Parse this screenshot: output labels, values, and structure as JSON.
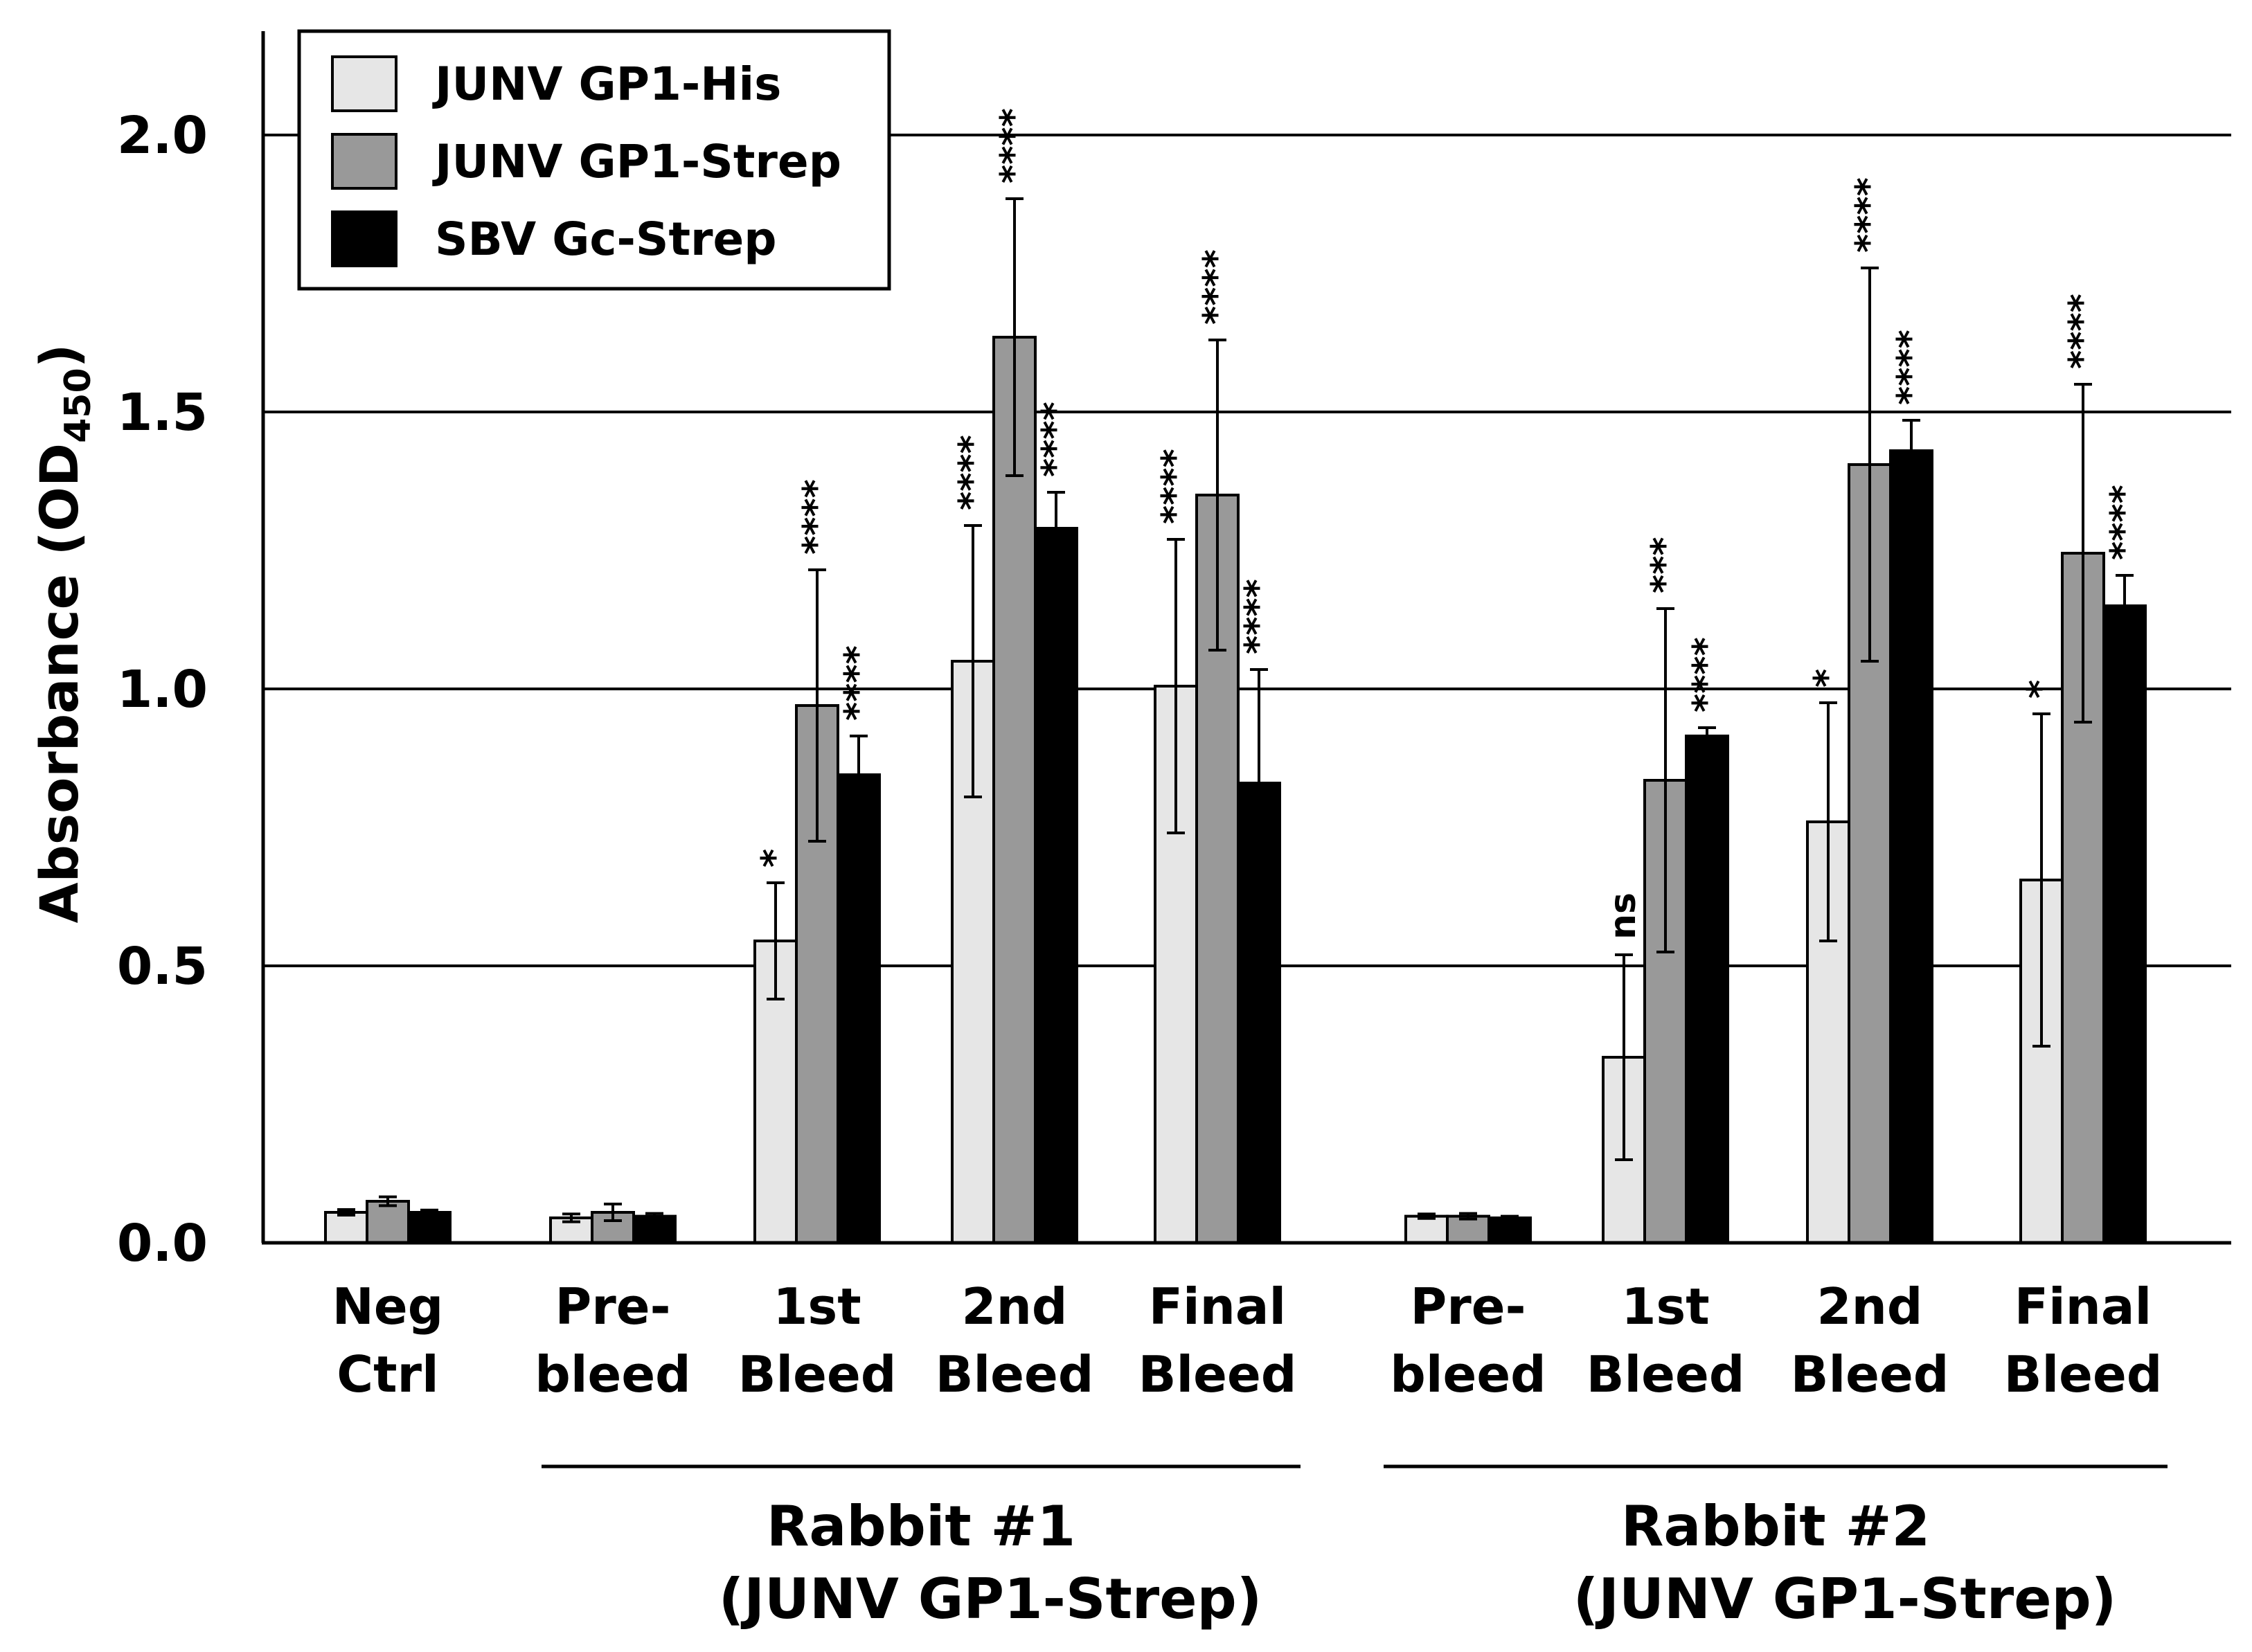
{
  "chart_data": {
    "type": "bar",
    "title": "",
    "xlabel": "",
    "ylabel": "Absorbance (OD",
    "ylabel_subscript": "450",
    "ylabel_suffix": ")",
    "ylim": [
      0,
      2.2
    ],
    "yticks": [
      "0.0",
      "0.5",
      "1.0",
      "1.5",
      "2.0"
    ],
    "ytick_values": [
      0,
      0.5,
      1.0,
      1.5,
      2.0
    ],
    "grid": true,
    "legend_position": "top-left",
    "categories": [
      [
        "Neg",
        "Ctrl"
      ],
      [
        "Pre-",
        "bleed"
      ],
      [
        "1st",
        "Bleed"
      ],
      [
        "2nd",
        "Bleed"
      ],
      [
        "Final",
        "Bleed"
      ],
      [
        "Pre-",
        "bleed"
      ],
      [
        "1st",
        "Bleed"
      ],
      [
        "2nd",
        "Bleed"
      ],
      [
        "Final",
        "Bleed"
      ]
    ],
    "groups": [
      {
        "lines": [
          "Rabbit #1",
          "(JUNV GP1-Strep)"
        ],
        "start": 1,
        "end": 4
      },
      {
        "lines": [
          "Rabbit #2",
          "(JUNV GP1-Strep)"
        ],
        "start": 5,
        "end": 8
      }
    ],
    "series": [
      {
        "name": "JUNV GP1-His",
        "color": "#e6e6e6",
        "values": [
          0.055,
          0.045,
          0.545,
          1.05,
          1.005,
          0.048,
          0.335,
          0.76,
          0.655
        ],
        "errors": [
          0.005,
          0.007,
          0.105,
          0.245,
          0.265,
          0.004,
          0.185,
          0.215,
          0.3
        ],
        "sig": [
          "",
          "",
          "*",
          "****",
          "****",
          "",
          "ns",
          "*",
          "*"
        ]
      },
      {
        "name": "JUNV GP1-Strep",
        "color": "#999999",
        "values": [
          0.075,
          0.055,
          0.97,
          1.635,
          1.35,
          0.048,
          0.835,
          1.405,
          1.245
        ],
        "errors": [
          0.008,
          0.015,
          0.245,
          0.25,
          0.28,
          0.005,
          0.31,
          0.355,
          0.305
        ],
        "sig": [
          "",
          "",
          "****",
          "****",
          "****",
          "",
          "***",
          "****",
          "****"
        ]
      },
      {
        "name": "SBV Gc-Strep",
        "color": "#000000",
        "values": [
          0.055,
          0.048,
          0.845,
          1.29,
          0.83,
          0.045,
          0.915,
          1.43,
          1.15
        ],
        "errors": [
          0.004,
          0.005,
          0.07,
          0.065,
          0.205,
          0.003,
          0.015,
          0.055,
          0.055
        ],
        "sig": [
          "",
          "",
          "****",
          "****",
          "****",
          "",
          "****",
          "****",
          "****"
        ]
      }
    ]
  }
}
